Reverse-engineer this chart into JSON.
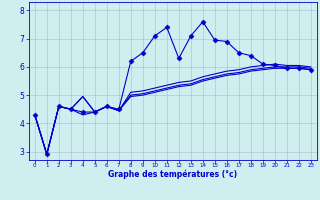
{
  "xlabel": "Graphe des températures (°c)",
  "bg_color": "#d0eef0",
  "line_color": "#0000cc",
  "grid_color": "#b0c8d0",
  "xlim": [
    -0.5,
    23.5
  ],
  "ylim": [
    2.7,
    8.3
  ],
  "xticks": [
    0,
    1,
    2,
    3,
    4,
    5,
    6,
    7,
    8,
    9,
    10,
    11,
    12,
    13,
    14,
    15,
    16,
    17,
    18,
    19,
    20,
    21,
    22,
    23
  ],
  "yticks": [
    3,
    4,
    5,
    6,
    7,
    8
  ],
  "series": [
    [
      4.3,
      2.9,
      4.6,
      4.5,
      4.4,
      4.4,
      4.6,
      4.5,
      6.2,
      6.5,
      7.1,
      7.4,
      6.3,
      7.1,
      7.6,
      6.95,
      6.9,
      6.5,
      6.4,
      6.1,
      6.05,
      5.95,
      5.95,
      5.9
    ],
    [
      4.3,
      2.9,
      4.6,
      4.5,
      4.3,
      4.4,
      4.6,
      4.45,
      4.95,
      5.0,
      5.1,
      5.2,
      5.3,
      5.35,
      5.5,
      5.6,
      5.7,
      5.75,
      5.85,
      5.9,
      5.95,
      5.95,
      5.95,
      5.9
    ],
    [
      4.3,
      2.9,
      4.6,
      4.5,
      4.95,
      4.4,
      4.6,
      4.45,
      5.0,
      5.05,
      5.15,
      5.25,
      5.35,
      5.4,
      5.55,
      5.65,
      5.75,
      5.8,
      5.9,
      5.95,
      6.0,
      6.0,
      6.0,
      5.95
    ],
    [
      4.3,
      2.9,
      4.6,
      4.5,
      4.95,
      4.4,
      4.6,
      4.45,
      5.1,
      5.15,
      5.25,
      5.35,
      5.45,
      5.5,
      5.65,
      5.75,
      5.85,
      5.9,
      6.0,
      6.05,
      6.1,
      6.05,
      6.05,
      6.0
    ]
  ],
  "marker": "D",
  "markersize": 2.5,
  "lw_main": 0.8,
  "lw_other": 0.8
}
